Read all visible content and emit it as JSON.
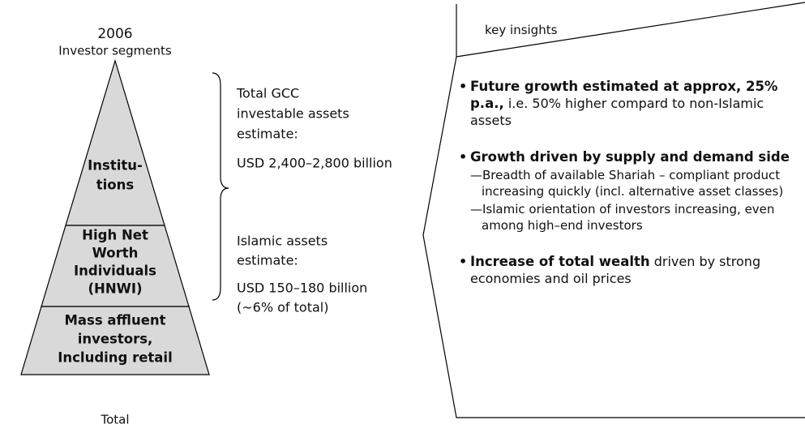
{
  "pyramid": {
    "year": "2006",
    "title": "Investor segments",
    "layers": [
      {
        "lines": [
          "Institu-",
          "tions"
        ]
      },
      {
        "lines": [
          "High Net",
          "Worth",
          "Individuals",
          "(HNWI)"
        ]
      },
      {
        "lines": [
          "Mass affluent",
          "investors,",
          "Including retail"
        ]
      }
    ],
    "footer": "Total"
  },
  "estimates": [
    {
      "lines": [
        "Total GCC",
        "investable assets",
        "estimate:"
      ],
      "value": "USD 2,400–2,800 billion"
    },
    {
      "lines": [
        "Islamic assets",
        "estimate:"
      ],
      "value": "USD 150–180 billion",
      "note": "(~6% of total)"
    }
  ],
  "insights": {
    "heading": "key insights",
    "bullets": [
      {
        "bold": "Future growth estimated at approx, 25% p.a.,",
        "text": " i.e. 50% higher compard to non-Islamic assets"
      },
      {
        "bold": "Growth driven by supply and demand side",
        "subs": [
          "—Breadth of available Shariah – compliant product increasing quickly (incl. alternative asset classes)",
          "—Islamic orientation of investors increasing, even among high–end investors"
        ]
      },
      {
        "bold": "Increase of total wealth",
        "text": " driven by strong economies and oil prices"
      }
    ]
  }
}
